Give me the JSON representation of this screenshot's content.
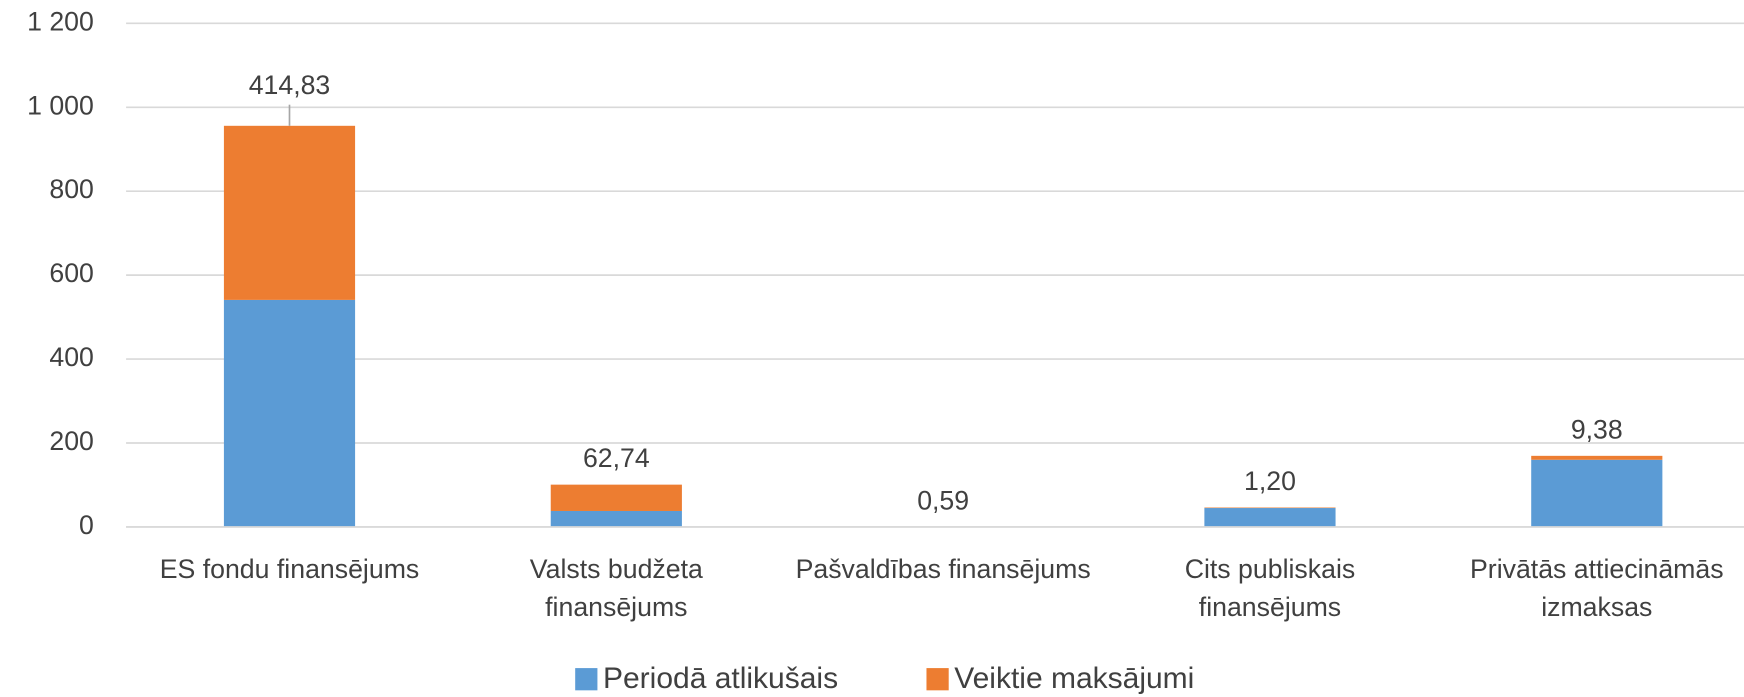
{
  "chart_data": {
    "type": "stacked-bar",
    "categories": [
      "ES fondu finansējums",
      "Valsts budžeta finansējums",
      "Pašvaldības finansējums",
      "Cits publiskais finansējums",
      "Privātās attiecināmās izmaksas"
    ],
    "series": [
      {
        "name": "Periodā atlikušais",
        "color": "#5b9bd5",
        "values": [
          541,
          38,
          0,
          45,
          160
        ]
      },
      {
        "name": "Veiktie maksājumi",
        "color": "#ed7d31",
        "values": [
          414.83,
          62.74,
          0.59,
          1.2,
          9.38
        ],
        "value_labels": [
          "414,83",
          "62,74",
          "0,59",
          "1,20",
          "9,38"
        ]
      }
    ],
    "ylim": [
      0,
      1200
    ],
    "yticks": [
      0,
      200,
      400,
      600,
      800,
      {
        "value": 1000,
        "label": "1 000"
      },
      {
        "value": 1200,
        "label": "1 200"
      }
    ],
    "grid": true,
    "legend": "bottom"
  }
}
